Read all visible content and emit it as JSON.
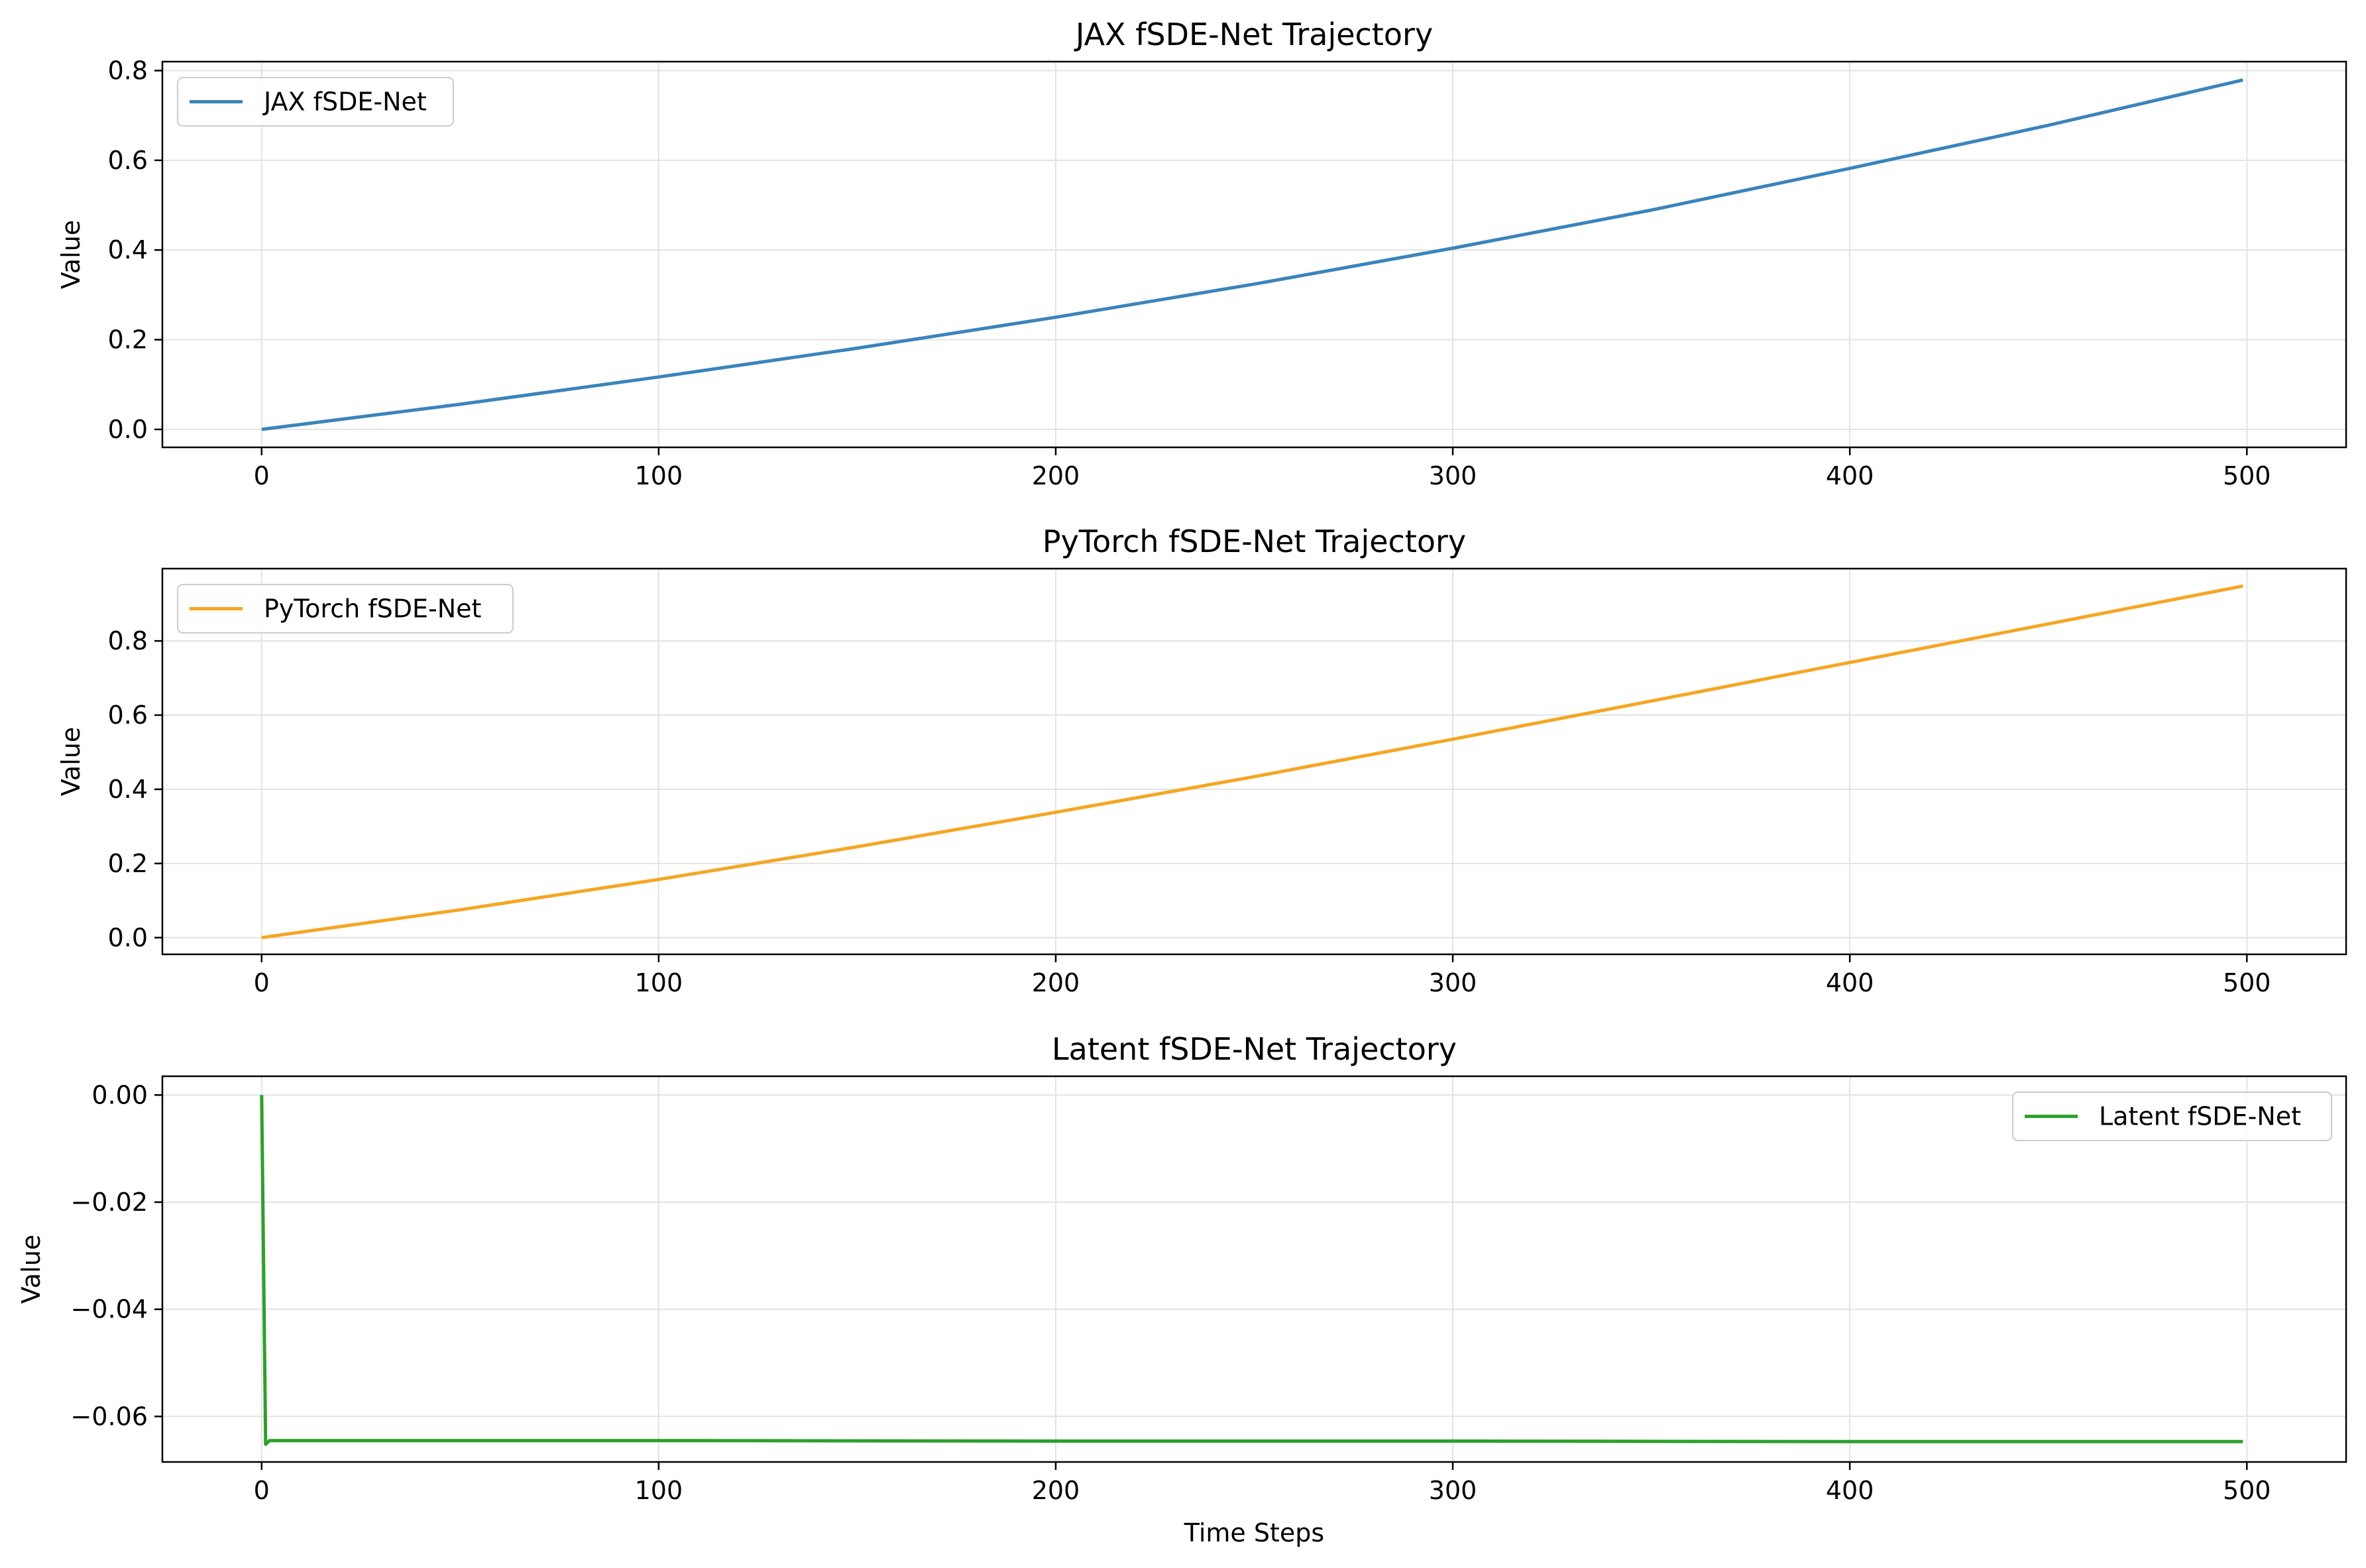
{
  "chart_data": [
    {
      "type": "line",
      "title": "JAX fSDE-Net Trajectory",
      "xlabel": "",
      "ylabel": "Value",
      "xlim": [
        -25,
        525
      ],
      "ylim": [
        -0.04,
        0.82
      ],
      "xticks": [
        0,
        100,
        200,
        300,
        400,
        500
      ],
      "xtick_labels": [
        "0",
        "100",
        "200",
        "300",
        "400",
        "500"
      ],
      "yticks": [
        0.0,
        0.2,
        0.4,
        0.6,
        0.8
      ],
      "ytick_labels": [
        "0.0",
        "0.2",
        "0.4",
        "0.6",
        "0.8"
      ],
      "grid": true,
      "legend": "upper-left",
      "series": [
        {
          "name": "JAX fSDE-Net",
          "color": "#3a84bc",
          "x": [
            0,
            50,
            100,
            150,
            200,
            250,
            300,
            350,
            400,
            450,
            499
          ],
          "y": [
            0.0,
            0.056,
            0.117,
            0.181,
            0.25,
            0.324,
            0.404,
            0.489,
            0.582,
            0.678,
            0.779
          ]
        }
      ]
    },
    {
      "type": "line",
      "title": "PyTorch fSDE-Net Trajectory",
      "xlabel": "",
      "ylabel": "Value",
      "xlim": [
        -25,
        525
      ],
      "ylim": [
        -0.045,
        0.995
      ],
      "xticks": [
        0,
        100,
        200,
        300,
        400,
        500
      ],
      "xtick_labels": [
        "0",
        "100",
        "200",
        "300",
        "400",
        "500"
      ],
      "yticks": [
        0.0,
        0.2,
        0.4,
        0.6,
        0.8
      ],
      "ytick_labels": [
        "0.0",
        "0.2",
        "0.4",
        "0.6",
        "0.8"
      ],
      "grid": true,
      "legend": "upper-left",
      "series": [
        {
          "name": "PyTorch fSDE-Net",
          "color": "#f5a623",
          "x": [
            0,
            50,
            100,
            150,
            200,
            250,
            300,
            350,
            400,
            450,
            499
          ],
          "y": [
            0.0,
            0.075,
            0.157,
            0.245,
            0.338,
            0.434,
            0.535,
            0.638,
            0.742,
            0.846,
            0.948
          ]
        }
      ]
    },
    {
      "type": "line",
      "title": "Latent fSDE-Net Trajectory",
      "xlabel": "Time Steps",
      "ylabel": "Value",
      "xlim": [
        -25,
        525
      ],
      "ylim": [
        -0.0685,
        0.0035
      ],
      "xticks": [
        0,
        100,
        200,
        300,
        400,
        500
      ],
      "xtick_labels": [
        "0",
        "100",
        "200",
        "300",
        "400",
        "500"
      ],
      "yticks": [
        0.0,
        -0.02,
        -0.04,
        -0.06
      ],
      "ytick_labels": [
        "0.00",
        "−0.02",
        "−0.04",
        "−0.06"
      ],
      "grid": true,
      "legend": "upper-right",
      "series": [
        {
          "name": "Latent fSDE-Net",
          "color": "#2ca02c",
          "x": [
            0,
            1,
            2,
            100,
            200,
            300,
            400,
            499
          ],
          "y": [
            0.0,
            -0.0652,
            -0.0645,
            -0.0645,
            -0.0646,
            -0.0646,
            -0.0647,
            -0.0647
          ]
        }
      ]
    }
  ]
}
